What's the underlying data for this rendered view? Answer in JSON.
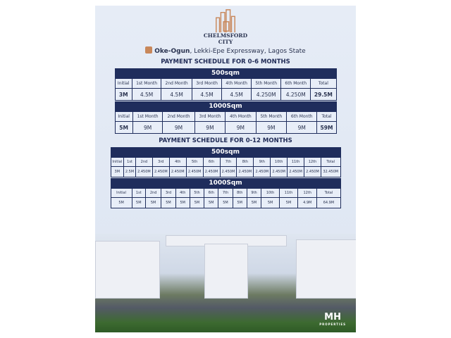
{
  "brand": {
    "name_line1": "CHELMSFORD",
    "name_line2": "CITY",
    "location_bold": "Oke-Ogun",
    "location_rest": ", Lekki-Epe Expressway, Lagos State",
    "logo_text": "MH",
    "logo_sub": "PROPERTIES"
  },
  "colors": {
    "navy": "#1f2d5c",
    "bronze": "#c8875a"
  },
  "schedule_6": {
    "title": "PAYMENT SCHEDULE FOR 0-6 MONTHS",
    "headers": [
      "Initial",
      "1st Month",
      "2nd Month",
      "3rd Month",
      "4th Month",
      "5th Month",
      "6th Month",
      "Total"
    ],
    "plans": [
      {
        "size": "500sqm",
        "values": [
          "3M",
          "4.5M",
          "4.5M",
          "4.5M",
          "4.5M",
          "4.250M",
          "4.250M",
          "29.5M"
        ]
      },
      {
        "size": "1000Sqm",
        "values": [
          "5M",
          "9M",
          "9M",
          "9M",
          "9M",
          "9M",
          "9M",
          "59M"
        ]
      }
    ]
  },
  "schedule_12": {
    "title": "PAYMENT SCHEDULE FOR 0-12 MONTHS",
    "headers": [
      "Initial",
      "1st",
      "2nd",
      "3rd",
      "4th",
      "5th",
      "6th",
      "7th",
      "8th",
      "9th",
      "10th",
      "11th",
      "12th",
      "Total"
    ],
    "plans": [
      {
        "size": "500sqm",
        "values": [
          "3M",
          "2.5M",
          "2.450M",
          "2.450M",
          "2.450M",
          "2.450M",
          "2.450M",
          "2.450M",
          "2.450M",
          "2.450M",
          "2.450M",
          "2.450M",
          "2.450M",
          "32.450M"
        ]
      },
      {
        "size": "1000Sqm",
        "values": [
          "5M",
          "5M",
          "5M",
          "5M",
          "5M",
          "5M",
          "5M",
          "5M",
          "5M",
          "5M",
          "5M",
          "5M",
          "4.9M",
          "64.9M"
        ]
      }
    ]
  }
}
